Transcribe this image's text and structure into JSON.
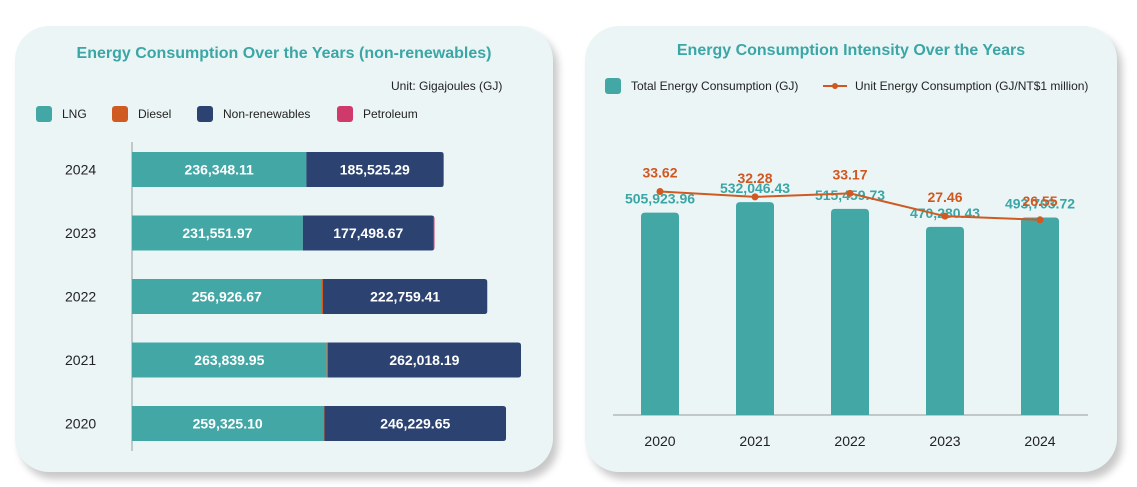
{
  "chart_data": [
    {
      "type": "bar",
      "orientation": "horizontal",
      "stacked": true,
      "title": "Energy Consumption Over the Years (non-renewables)",
      "unit": "Unit: Gigajoules (GJ)",
      "legend_position": "top-left",
      "categories": [
        "2024",
        "2023",
        "2022",
        "2021",
        "2020"
      ],
      "series": [
        {
          "name": "LNG",
          "color": "#43a7a6",
          "values": [
            236348.11,
            231551.97,
            256926.67,
            263839.95,
            259325.1
          ],
          "labels": [
            "236,348.11",
            "231,551.97",
            "256,926.67",
            "263,839.95",
            "259,325.10"
          ]
        },
        {
          "name": "Diesel",
          "color": "#cf5a22",
          "values": [
            0,
            0,
            2000,
            1500,
            1500
          ],
          "labels": [
            "",
            "",
            "",
            "",
            ""
          ]
        },
        {
          "name": "Non-renewables",
          "color": "#2c4371",
          "values": [
            185525.29,
            177498.67,
            222759.41,
            262018.19,
            246229.65
          ],
          "labels": [
            "185,525.29",
            "177,498.67",
            "222,759.41",
            "262,018.19",
            "246,229.65"
          ]
        },
        {
          "name": "Petroleum",
          "color": "#cf3a6a",
          "values": [
            1000,
            1000,
            0,
            0,
            0
          ],
          "labels": [
            "",
            "",
            "",
            "",
            ""
          ]
        }
      ],
      "xlim": [
        0,
        530000
      ],
      "grid": false
    },
    {
      "type": "bar+line",
      "title": "Energy Consumption Intensity Over the Years",
      "legend_position": "top-left",
      "categories": [
        "2020",
        "2021",
        "2022",
        "2023",
        "2024"
      ],
      "bar_series": {
        "name": "Total Energy Consumption (GJ)",
        "color": "#43a7a6",
        "values": [
          505923.96,
          532046.43,
          515459.73,
          470280.43,
          493703.72
        ],
        "labels": [
          "505,923.96",
          "532,046.43",
          "515,459.73",
          "470,280.43",
          "493,703.72"
        ]
      },
      "line_series": {
        "name": "Unit Energy Consumption (GJ/NT$1 million)",
        "color": "#cf5a22",
        "values": [
          33.62,
          32.28,
          33.17,
          27.46,
          26.55
        ],
        "labels": [
          "33.62",
          "32.28",
          "33.17",
          "27.46",
          "26.55"
        ]
      },
      "grid": false
    }
  ]
}
